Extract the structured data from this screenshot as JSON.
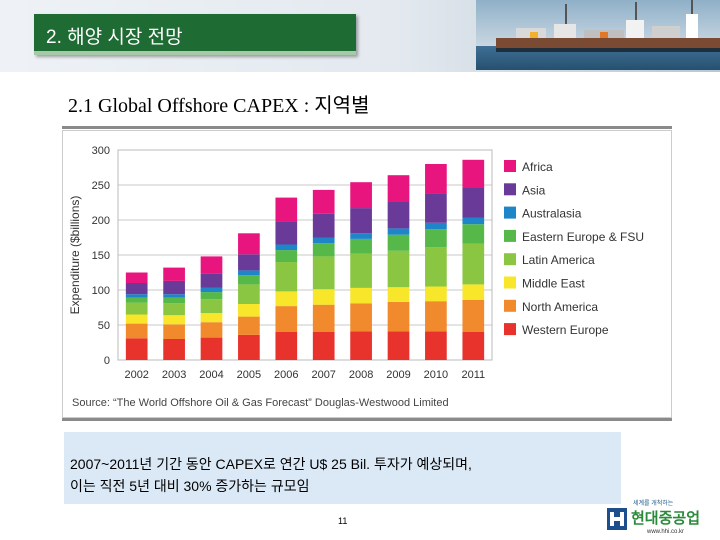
{
  "header": {
    "title": "2. 해양 시장 전망"
  },
  "subtitle": "2.1  Global Offshore CAPEX : 지역별",
  "chart_data": {
    "type": "bar",
    "stacked": true,
    "categories": [
      "2002",
      "2003",
      "2004",
      "2005",
      "2006",
      "2007",
      "2008",
      "2009",
      "2010",
      "2011"
    ],
    "ylabel": "Expenditure ($billions)",
    "xlabel": "",
    "ylim": [
      0,
      300
    ],
    "yticks": [
      0,
      50,
      100,
      150,
      200,
      250,
      300
    ],
    "grid": true,
    "legend_position": "right",
    "source": "Source: “The World Offshore Oil & Gas Forecast” Douglas-Westwood Limited",
    "series": [
      {
        "name": "Western Europe",
        "color": "#e8322c",
        "values": [
          31,
          30,
          32,
          36,
          40,
          40,
          41,
          41,
          41,
          40
        ]
      },
      {
        "name": "North America",
        "color": "#f18a2c",
        "values": [
          21,
          21,
          22,
          26,
          37,
          39,
          40,
          42,
          43,
          46
        ]
      },
      {
        "name": "Middle East",
        "color": "#f7e62a",
        "values": [
          13,
          13,
          13,
          18,
          21,
          22,
          22,
          21,
          21,
          22
        ]
      },
      {
        "name": "Latin America",
        "color": "#8ac642",
        "values": [
          17,
          17,
          20,
          28,
          42,
          47,
          49,
          52,
          56,
          58
        ]
      },
      {
        "name": "Eastern Europe & FSU",
        "color": "#55b848",
        "values": [
          7,
          8,
          10,
          13,
          17,
          19,
          21,
          23,
          26,
          28
        ]
      },
      {
        "name": "Australasia",
        "color": "#1e86c8",
        "values": [
          5,
          5,
          6,
          7,
          8,
          8,
          8,
          9,
          9,
          9
        ]
      },
      {
        "name": "Asia",
        "color": "#6a3a98",
        "values": [
          16,
          19,
          20,
          23,
          33,
          34,
          36,
          39,
          42,
          44
        ]
      },
      {
        "name": "Africa",
        "color": "#e8157e",
        "values": [
          15,
          19,
          25,
          30,
          34,
          34,
          37,
          37,
          42,
          39
        ]
      }
    ]
  },
  "note": {
    "line1": "2007~2011년 기간 동안 CAPEX로 연간 U$ 25 Bil. 투자가 예상되며,",
    "line2": "이는 직전 5년 대비 30% 증가하는 규모임"
  },
  "page_number": "11",
  "logo": {
    "tagline": "세계를 개척하는",
    "name": "현대중공업",
    "url": "www.hhi.co.kr"
  },
  "colors": {
    "title_bg": "#1f6b34",
    "note_bg": "#dbe9f7"
  }
}
